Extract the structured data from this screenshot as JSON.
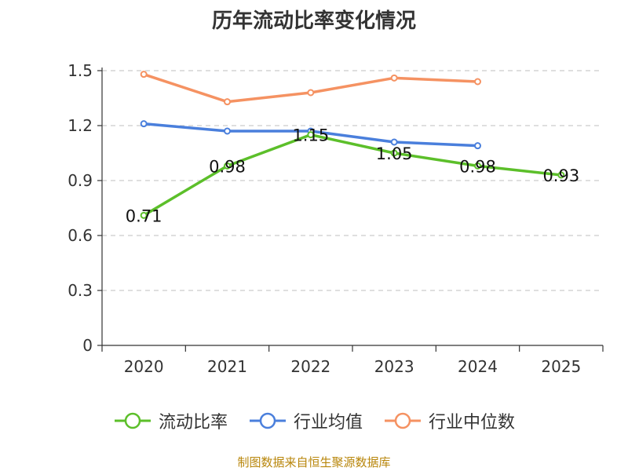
{
  "chart_data": {
    "type": "line",
    "title": "历年流动比率变化情况",
    "categories": [
      "2020",
      "2021",
      "2022",
      "2023",
      "2024",
      "2025"
    ],
    "ylim": [
      0,
      1.5
    ],
    "yticks": [
      "0",
      "0.3",
      "0.6",
      "0.9",
      "1.2",
      "1.5"
    ],
    "grid": true,
    "legend_position": "bottom",
    "series": [
      {
        "name": "流动比率",
        "color": "#5cbf2a",
        "values": [
          0.71,
          0.98,
          1.15,
          1.05,
          0.98,
          0.93
        ],
        "labels": [
          "0.71",
          "0.98",
          "1.15",
          "1.05",
          "0.98",
          "0.93"
        ]
      },
      {
        "name": "行业均值",
        "color": "#4a7fdc",
        "values": [
          1.21,
          1.17,
          1.17,
          1.11,
          1.09,
          null
        ]
      },
      {
        "name": "行业中位数",
        "color": "#f59262",
        "values": [
          1.48,
          1.33,
          1.38,
          1.46,
          1.44,
          null
        ]
      }
    ]
  },
  "source": "制图数据来自恒生聚源数据库"
}
